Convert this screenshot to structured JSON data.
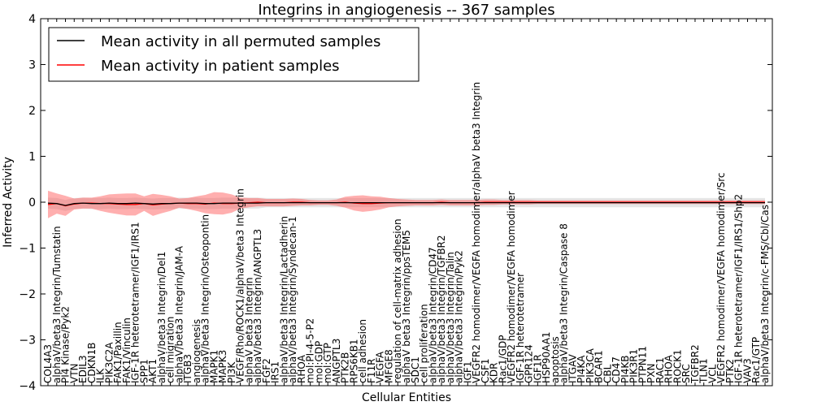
{
  "chart_data": {
    "type": "line",
    "title": "Integrins in angiogenesis -- 367 samples",
    "xlabel": "Cellular Entities",
    "ylabel": "Inferred Activity",
    "ylim": [
      -4,
      4
    ],
    "yticks": [
      -4,
      -3,
      -2,
      -1,
      0,
      1,
      2,
      3,
      4
    ],
    "legend_position": "top-left",
    "categories": [
      "COL4A3",
      "alphaV/beta3 Integrin/Tumstatin",
      "PI4 Kinase/Pyk2",
      "VTN",
      "EDIL3",
      "CDKN1B",
      "ILK",
      "PIK3C2A",
      "FAK1/Paxillin",
      "FAK1/Vinculin",
      "IGF-1R heterotetramer/IGF1/IRS1",
      "SPP1",
      "AKT1",
      "alphaV/beta3 Integrin/Del1",
      "cell migration",
      "alphaV/beta3 Integrin/JAM-A",
      "ITGB3",
      "angiogenesis",
      "alphaV/beta3 Integrin/Osteopontin",
      "MAPK1",
      "MAPK3",
      "PI3K",
      "VEGF/Rho/ROCK1/alphaV/beta3 Integrin",
      "alphaV beta3 Integrin",
      "alphaV/beta3 Integrin/ANGPTL3",
      "FGF2",
      "IRS1",
      "alphaV/beta3 Integrin/Lactadherin",
      "alphaV/beta3 Integrin/Syndecan-1",
      "RHOA",
      "mol:PI-4-5-P2",
      "mol:GDP",
      "mol:GTP",
      "ANGPTL3",
      "PTK2B",
      "RPS6KB1",
      "cell adhesion",
      "F11R",
      "VEGFA",
      "MFGE8",
      "regulation of cell-matrix adhesion",
      "alphaV beta3 Integrin/ppsTEM5",
      "SDC1",
      "cell proliferation",
      "alphaV/beta3 Integrin/CD47",
      "alphaV/beta3 Integrin/TGFBR2",
      "alphaV/beta3 Integrin/Talin",
      "alphaV/beta3 Integrin/Pyk2",
      "IGF1",
      "VEGFR2 homodimer/VEGFA homodimer/alphaV beta3 Integrin",
      "CSF1",
      "KDR",
      "Rac1/GDP",
      "VEGFR2 homodimer/VEGFA homodimer",
      "IGF-1R heterotetramer",
      "GPR124",
      "IGF1R",
      "HSP90AA1",
      "apoptosis",
      "alphaV/beta3 Integrin/Caspase 8",
      "ITGAV",
      "PI4KA",
      "PIK3CA",
      "BCAR1",
      "CBL",
      "CD47",
      "PI4KB",
      "PIK3R1",
      "PTPN11",
      "PXN",
      "RAC1",
      "RHOA",
      "ROCK1",
      "SRC",
      "TGFBR2",
      "TLN1",
      "VCL",
      "VEGFR2 homodimer/VEGFA homodimer/Src",
      "PTK2",
      "IGF-1R heterotetramer/IGF1/IRS1/Shp2",
      "VAV3",
      "Rac1/GTP",
      "alphaV/beta3 Integrin/c-FMS/Cbl/Cas"
    ],
    "series": [
      {
        "name": "Mean activity in all permuted samples",
        "color": "#000000",
        "values": [
          -0.02,
          -0.03,
          -0.07,
          -0.03,
          -0.02,
          -0.03,
          -0.03,
          -0.02,
          -0.03,
          -0.03,
          -0.02,
          -0.03,
          -0.04,
          -0.03,
          -0.03,
          -0.02,
          -0.02,
          -0.02,
          -0.03,
          -0.03,
          -0.02,
          -0.02,
          -0.02,
          -0.02,
          -0.02,
          -0.01,
          -0.01,
          -0.01,
          -0.01,
          -0.01,
          -0.01,
          -0.01,
          -0.01,
          -0.01,
          -0.01,
          -0.01,
          -0.01,
          -0.01,
          -0.01,
          -0.01,
          -0.01,
          -0.01,
          -0.01,
          -0.01,
          -0.01,
          -0.01,
          -0.01,
          -0.01,
          -0.01,
          -0.01,
          -0.01,
          -0.01,
          -0.01,
          -0.01,
          -0.01,
          -0.01,
          -0.01,
          -0.01,
          -0.01,
          -0.01,
          -0.01,
          -0.01,
          -0.01,
          -0.01,
          -0.01,
          -0.01,
          -0.01,
          -0.01,
          -0.01,
          -0.01,
          -0.01,
          -0.01,
          -0.01,
          -0.01,
          -0.01,
          -0.01,
          -0.01,
          -0.01,
          -0.01,
          -0.01,
          -0.01,
          -0.01,
          -0.01
        ],
        "band_halfwidth": [
          0.12,
          0.12,
          0.12,
          0.12,
          0.12,
          0.12,
          0.12,
          0.12,
          0.12,
          0.12,
          0.12,
          0.12,
          0.12,
          0.12,
          0.12,
          0.12,
          0.12,
          0.12,
          0.12,
          0.12,
          0.12,
          0.12,
          0.12,
          0.12,
          0.12,
          0.1,
          0.1,
          0.1,
          0.1,
          0.1,
          0.1,
          0.1,
          0.1,
          0.1,
          0.1,
          0.1,
          0.1,
          0.1,
          0.1,
          0.1,
          0.1,
          0.1,
          0.1,
          0.1,
          0.1,
          0.1,
          0.1,
          0.1,
          0.1,
          0.1,
          0.1,
          0.1,
          0.1,
          0.1,
          0.1,
          0.1,
          0.1,
          0.1,
          0.1,
          0.1,
          0.1,
          0.1,
          0.1,
          0.1,
          0.1,
          0.1,
          0.1,
          0.1,
          0.1,
          0.1,
          0.1,
          0.1,
          0.1,
          0.1,
          0.1,
          0.1,
          0.1,
          0.1,
          0.1,
          0.1,
          0.1,
          0.1,
          0.1
        ]
      },
      {
        "name": "Mean activity in patient samples",
        "color": "#ff0000",
        "values": [
          -0.05,
          -0.03,
          -0.08,
          -0.04,
          -0.02,
          -0.02,
          -0.03,
          -0.03,
          -0.04,
          -0.05,
          -0.05,
          -0.03,
          -0.06,
          -0.04,
          -0.03,
          -0.02,
          -0.03,
          -0.03,
          -0.04,
          -0.02,
          -0.03,
          -0.03,
          -0.02,
          -0.01,
          0.0,
          -0.01,
          -0.01,
          -0.01,
          0.0,
          0.0,
          -0.01,
          -0.01,
          -0.01,
          -0.01,
          0.0,
          -0.02,
          -0.03,
          -0.03,
          -0.02,
          -0.01,
          -0.01,
          -0.01,
          -0.01,
          -0.01,
          -0.01,
          0.0,
          -0.01,
          -0.01,
          -0.01,
          -0.01,
          0.0,
          0.0,
          0.0,
          0.0,
          0.0,
          0.0,
          0.0,
          0.0,
          0.0,
          0.0,
          0.0,
          0.0,
          0.0,
          0.0,
          0.0,
          0.0,
          0.0,
          0.0,
          0.0,
          0.0,
          0.0,
          0.0,
          0.0,
          0.0,
          0.0,
          0.0,
          0.0,
          0.0,
          0.0,
          0.0,
          0.0,
          0.0,
          0.0
        ],
        "band_halfwidth": [
          0.3,
          0.22,
          0.22,
          0.12,
          0.12,
          0.12,
          0.16,
          0.2,
          0.22,
          0.24,
          0.24,
          0.16,
          0.24,
          0.2,
          0.16,
          0.1,
          0.12,
          0.16,
          0.2,
          0.24,
          0.24,
          0.2,
          0.12,
          0.1,
          0.09,
          0.08,
          0.08,
          0.08,
          0.08,
          0.07,
          0.06,
          0.05,
          0.05,
          0.07,
          0.12,
          0.16,
          0.18,
          0.16,
          0.14,
          0.1,
          0.08,
          0.07,
          0.06,
          0.06,
          0.06,
          0.06,
          0.06,
          0.06,
          0.06,
          0.06,
          0.06,
          0.06,
          0.05,
          0.05,
          0.05,
          0.05,
          0.04,
          0.04,
          0.04,
          0.04,
          0.04,
          0.04,
          0.04,
          0.04,
          0.04,
          0.04,
          0.04,
          0.04,
          0.04,
          0.04,
          0.04,
          0.04,
          0.04,
          0.04,
          0.04,
          0.04,
          0.04,
          0.04,
          0.04,
          0.04,
          0.04,
          0.04,
          0.04
        ]
      }
    ]
  }
}
